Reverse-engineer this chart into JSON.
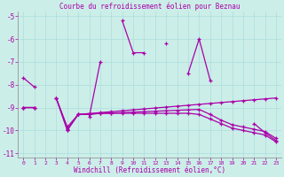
{
  "title": "Courbe du refroidissement éolien pour Beznau",
  "xlabel": "Windchill (Refroidissement éolien,°C)",
  "background_color": "#cceee8",
  "grid_color": "#aadddd",
  "line_color": "#aa00aa",
  "x": [
    0,
    1,
    2,
    3,
    4,
    5,
    6,
    7,
    8,
    9,
    10,
    11,
    12,
    13,
    14,
    15,
    16,
    17,
    18,
    19,
    20,
    21,
    22,
    23
  ],
  "line1": [
    -7.7,
    -8.1,
    null,
    null,
    -10.0,
    null,
    -9.4,
    -7.0,
    null,
    -5.2,
    -6.6,
    -6.6,
    null,
    -6.2,
    null,
    -7.5,
    -6.0,
    -7.8,
    null,
    null,
    null,
    -9.7,
    -10.1,
    -10.45
  ],
  "line2": [
    -9.0,
    -9.0,
    null,
    -8.6,
    -10.0,
    -9.3,
    -9.3,
    -9.25,
    -9.25,
    -9.25,
    -9.25,
    -9.25,
    -9.25,
    -9.25,
    -9.25,
    -9.25,
    -9.3,
    -9.5,
    -9.7,
    -9.9,
    -10.0,
    -10.1,
    -10.2,
    -10.5
  ],
  "line3": [
    -9.0,
    -9.0,
    null,
    -8.6,
    -9.85,
    -9.3,
    -9.28,
    -9.26,
    -9.24,
    -9.22,
    -9.2,
    -9.18,
    -9.16,
    -9.14,
    -9.12,
    -9.1,
    -9.08,
    -9.3,
    -9.55,
    -9.75,
    -9.85,
    -9.95,
    -10.05,
    -10.35
  ],
  "line4": [
    -9.0,
    -9.0,
    null,
    -8.6,
    -9.95,
    -9.3,
    -9.26,
    -9.22,
    -9.18,
    -9.14,
    -9.1,
    -9.06,
    -9.02,
    -8.98,
    -8.94,
    -8.9,
    -8.86,
    -8.82,
    -8.78,
    -8.74,
    -8.7,
    -8.66,
    -8.62,
    -8.58
  ],
  "ylim": [
    -11.2,
    -4.8
  ],
  "xlim": [
    -0.5,
    23.5
  ],
  "yticks": [
    -11,
    -10,
    -9,
    -8,
    -7,
    -6,
    -5
  ],
  "ytick_labels": [
    "-11",
    "-10",
    "-9",
    "-8",
    "-7",
    "-6",
    "-5"
  ]
}
